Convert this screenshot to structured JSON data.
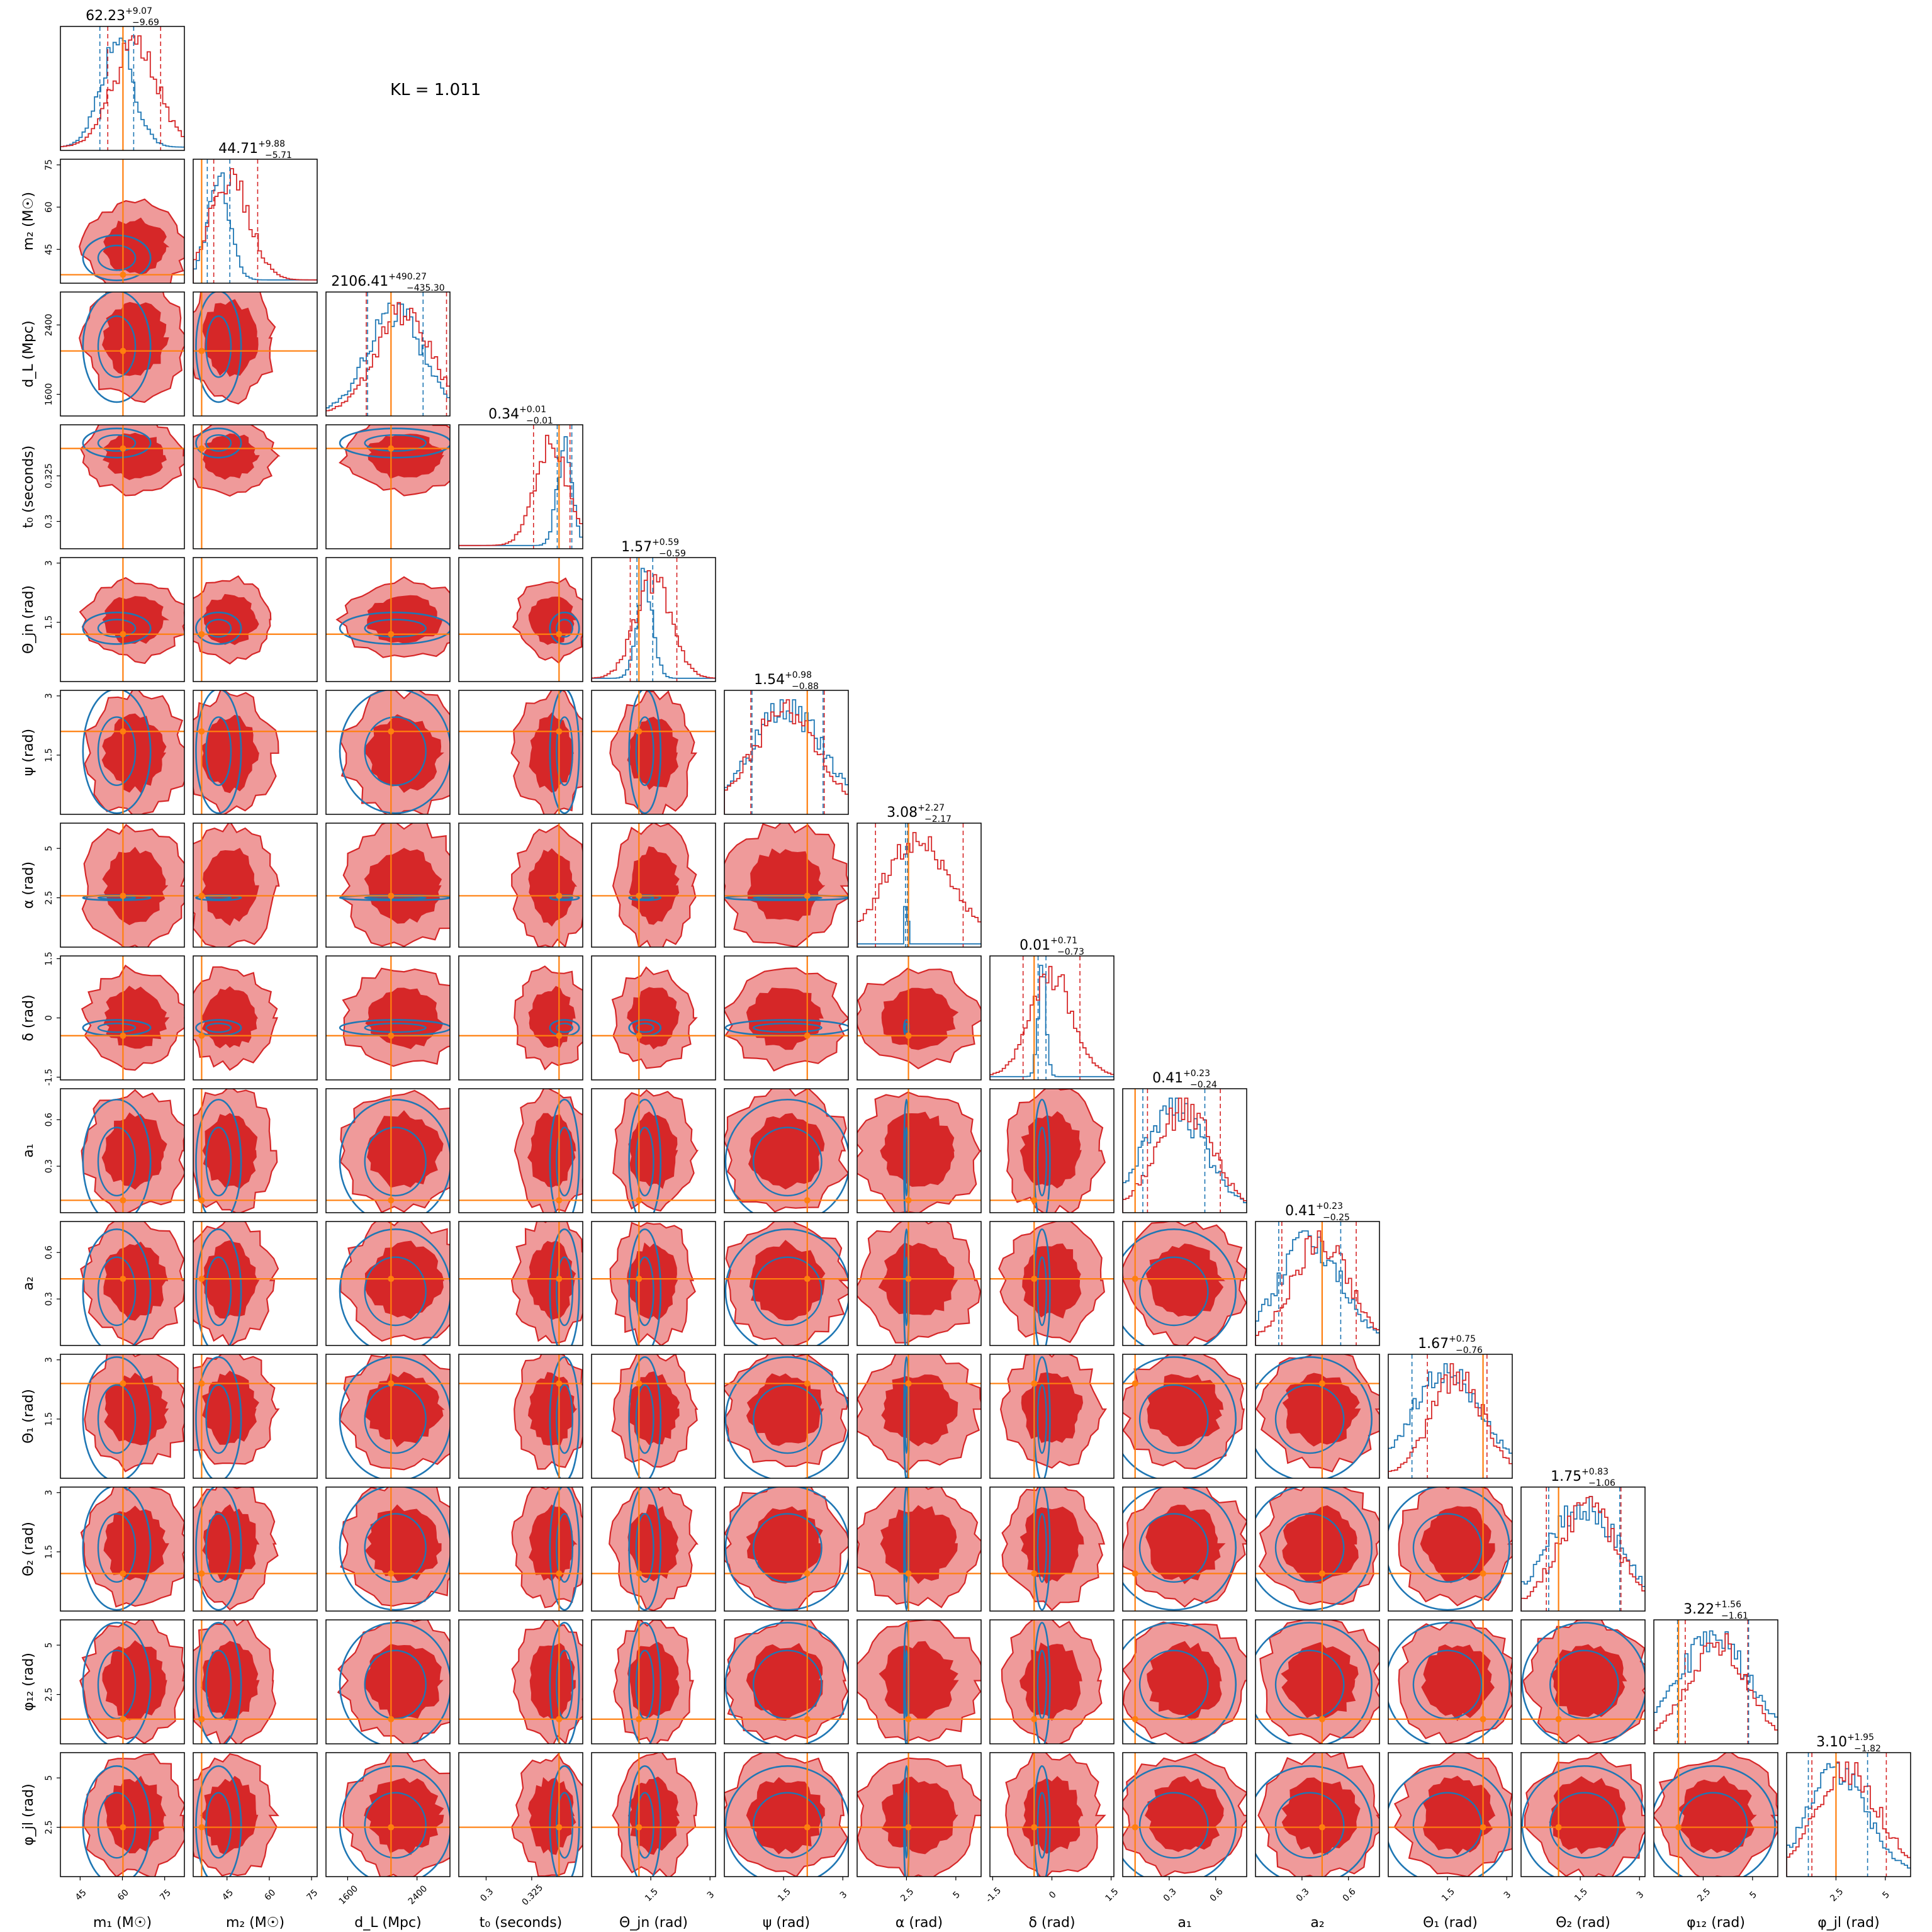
{
  "kl_label": "KL = 1.011",
  "colors": {
    "posterior": "#d62728",
    "posterior_light": "#ef9a9a",
    "reference": "#1f77b4",
    "truth": "#ff7f0e"
  },
  "chart_data": {
    "type": "corner",
    "parameters": [
      {
        "key": "m1",
        "label": "m₁ (M☉)",
        "range": [
          38,
          82
        ],
        "ticks": [
          45,
          60,
          75
        ],
        "truth": 60.2,
        "median": "62.23",
        "upper": "+9.07",
        "lower": "−9.69",
        "mean_post": 64.5,
        "sd_post": 8.0,
        "mean_ref": 58.0,
        "sd_ref": 6.0
      },
      {
        "key": "m2",
        "label": "m₂ (M☉)",
        "range": [
          33,
          77
        ],
        "ticks": [
          45,
          60,
          75
        ],
        "truth": 36.0,
        "median": "44.71",
        "upper": "+9.88",
        "lower": "−5.71",
        "mean_post": 46.0,
        "sd_post": 7.0,
        "mean_ref": 42.0,
        "sd_ref": 4.0
      },
      {
        "key": "dL",
        "label": "d_L (Mpc)",
        "range": [
          1350,
          2780
        ],
        "ticks": [
          1600,
          2400
        ],
        "truth": 2100,
        "median": "2106.41",
        "upper": "+490.27",
        "lower": "−435.30",
        "mean_post": 2250,
        "sd_post": 320,
        "mean_ref": 2150,
        "sd_ref": 320
      },
      {
        "key": "t0",
        "label": "t₀ (seconds)",
        "range": [
          0.285,
          0.353
        ],
        "ticks": [
          0.3,
          0.325
        ],
        "truth": 0.34,
        "median": "0.34",
        "upper": "+0.01",
        "lower": "−0.01",
        "mean_post": 0.336,
        "sd_post": 0.009,
        "mean_ref": 0.343,
        "sd_ref": 0.004
      },
      {
        "key": "theta_jn",
        "label": "Θ_jn (rad)",
        "range": [
          0,
          3.14
        ],
        "ticks": [
          1.5,
          3.0
        ],
        "truth": 1.2,
        "median": "1.57",
        "upper": "+0.59",
        "lower": "−0.59",
        "mean_post": 1.57,
        "sd_post": 0.45,
        "mean_ref": 1.35,
        "sd_ref": 0.2
      },
      {
        "key": "psi",
        "label": "ψ (rad)",
        "range": [
          0,
          3.14
        ],
        "ticks": [
          1.5,
          3.0
        ],
        "truth": 2.1,
        "median": "1.54",
        "upper": "+0.98",
        "lower": "−0.88",
        "mean_post": 1.55,
        "sd_post": 0.85,
        "mean_ref": 1.6,
        "sd_ref": 0.9
      },
      {
        "key": "alpha",
        "label": "α (rad)",
        "range": [
          0,
          6.28
        ],
        "ticks": [
          2.5,
          5.0
        ],
        "truth": 2.6,
        "median": "3.08",
        "upper": "+2.27",
        "lower": "−2.17",
        "mean_post": 3.1,
        "sd_post": 1.75,
        "mean_ref": 2.5,
        "sd_ref": 0.05
      },
      {
        "key": "delta",
        "label": "δ (rad)",
        "range": [
          -1.57,
          1.57
        ],
        "ticks": [
          -1.5,
          0.0,
          1.5
        ],
        "truth": -0.45,
        "median": "0.01",
        "upper": "+0.71",
        "lower": "−0.73",
        "mean_post": 0.0,
        "sd_post": 0.55,
        "mean_ref": -0.25,
        "sd_ref": 0.1
      },
      {
        "key": "a1",
        "label": "a₁",
        "range": [
          0,
          0.8
        ],
        "ticks": [
          0.3,
          0.6
        ],
        "truth": 0.08,
        "median": "0.41",
        "upper": "+0.23",
        "lower": "−0.24",
        "mean_post": 0.4,
        "sd_post": 0.18,
        "mean_ref": 0.33,
        "sd_ref": 0.2
      },
      {
        "key": "a2",
        "label": "a₂",
        "range": [
          0,
          0.8
        ],
        "ticks": [
          0.3,
          0.6
        ],
        "truth": 0.43,
        "median": "0.41",
        "upper": "+0.23",
        "lower": "−0.25",
        "mean_post": 0.42,
        "sd_post": 0.18,
        "mean_ref": 0.35,
        "sd_ref": 0.2
      },
      {
        "key": "theta1",
        "label": "Θ₁ (rad)",
        "range": [
          0,
          3.14
        ],
        "ticks": [
          1.5,
          3.0
        ],
        "truth": 2.4,
        "median": "1.67",
        "upper": "+0.75",
        "lower": "−0.76",
        "mean_post": 1.75,
        "sd_post": 0.65,
        "mean_ref": 1.5,
        "sd_ref": 0.9
      },
      {
        "key": "theta2",
        "label": "Θ₂ (rad)",
        "range": [
          0,
          3.14
        ],
        "ticks": [
          1.5,
          3.0
        ],
        "truth": 0.95,
        "median": "1.75",
        "upper": "+0.83",
        "lower": "−1.06",
        "mean_post": 1.7,
        "sd_post": 0.75,
        "mean_ref": 1.6,
        "sd_ref": 0.9
      },
      {
        "key": "phi12",
        "label": "φ₁₂ (rad)",
        "range": [
          0,
          6.28
        ],
        "ticks": [
          2.5,
          5.0
        ],
        "truth": 1.25,
        "median": "3.22",
        "upper": "+1.56",
        "lower": "−1.61",
        "mean_post": 3.2,
        "sd_post": 1.45,
        "mean_ref": 3.0,
        "sd_ref": 1.8
      },
      {
        "key": "phijl",
        "label": "φ_jl (rad)",
        "range": [
          0,
          6.28
        ],
        "ticks": [
          2.5,
          5.0
        ],
        "truth": 2.5,
        "median": "3.10",
        "upper": "+1.95",
        "lower": "−1.82",
        "mean_post": 3.1,
        "sd_post": 1.6,
        "mean_ref": 2.6,
        "sd_ref": 1.5
      }
    ]
  }
}
